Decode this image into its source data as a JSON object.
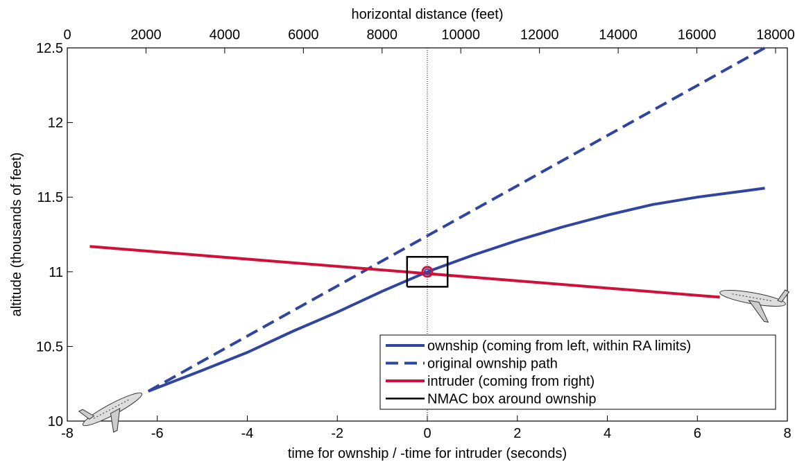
{
  "chart_data": {
    "type": "line",
    "xlabel": "time for ownship / -time for intruder (seconds)",
    "x2label": "horizontal distance (feet)",
    "ylabel": "altitude (thousands of feet)",
    "xlim": [
      -8,
      8
    ],
    "xticks": [
      -8,
      -6,
      -4,
      -2,
      0,
      2,
      4,
      6,
      8
    ],
    "x2lim": [
      0,
      18300
    ],
    "x2ticks": [
      0,
      2000,
      4000,
      6000,
      8000,
      10000,
      12000,
      14000,
      16000,
      18000
    ],
    "ylim": [
      10,
      12.5
    ],
    "yticks": [
      10,
      10.5,
      11,
      11.5,
      12,
      12.5
    ],
    "vline": 0,
    "series": [
      {
        "name": "ownship (coming from left, within RA limits)",
        "color": "#2f45a0",
        "dash": false,
        "x": [
          -6.2,
          -5,
          -4,
          -3,
          -2,
          -1,
          0,
          1,
          2,
          3,
          4,
          5,
          6,
          7,
          7.5
        ],
        "values": [
          10.2,
          10.34,
          10.46,
          10.6,
          10.73,
          10.87,
          11.0,
          11.11,
          11.21,
          11.3,
          11.38,
          11.45,
          11.5,
          11.54,
          11.56
        ]
      },
      {
        "name": "original ownship path",
        "color": "#2f45a0",
        "dash": true,
        "x": [
          -6.2,
          7.5
        ],
        "values": [
          10.2,
          12.5
        ]
      },
      {
        "name": "intruder (coming from right)",
        "color": "#d0103a",
        "dash": false,
        "x": [
          -7.5,
          6.5
        ],
        "values": [
          11.17,
          10.83
        ]
      },
      {
        "name": "NMAC box around ownship",
        "color": "#000000",
        "dash": false,
        "x": [
          -0.45,
          0.45,
          0.45,
          -0.45,
          -0.45
        ],
        "values": [
          10.9,
          10.9,
          11.1,
          11.1,
          10.9
        ]
      }
    ],
    "marker": {
      "x": 0,
      "y": 11
    }
  }
}
